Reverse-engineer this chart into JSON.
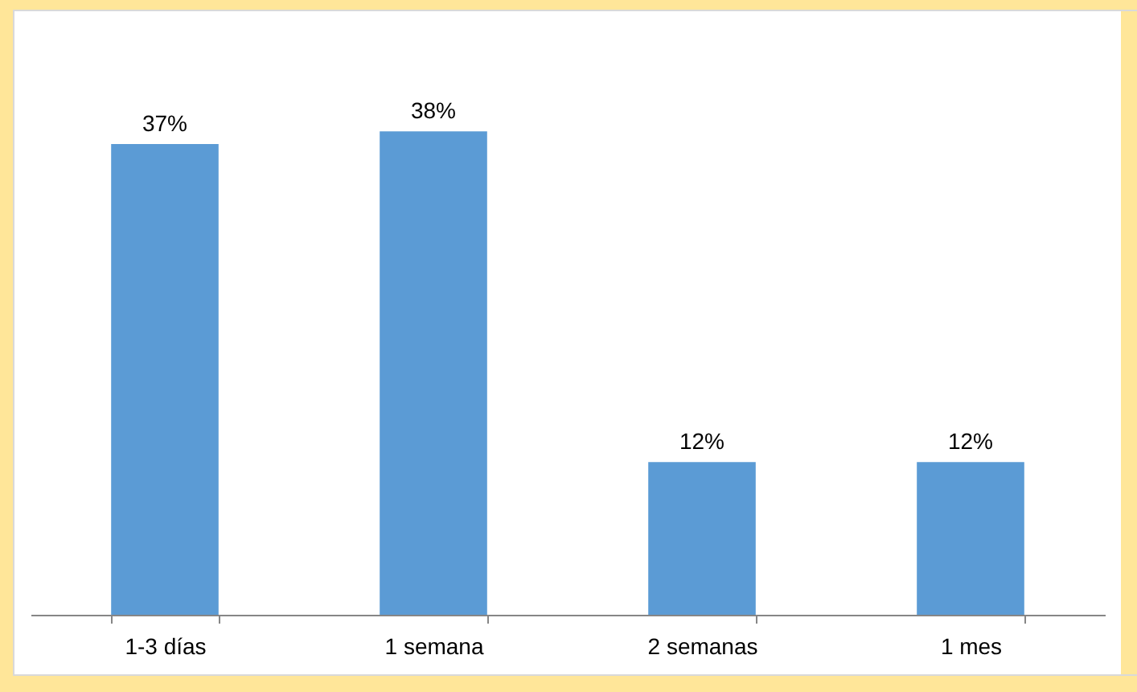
{
  "chart_data": {
    "type": "bar",
    "categories": [
      "1-3 días",
      "1 semana",
      "2 semanas",
      "1 mes"
    ],
    "values": [
      37,
      38,
      12,
      12
    ],
    "color": "#5b9bd5",
    "value_labels": [
      "37%",
      "38%",
      "12%",
      "12%"
    ],
    "tick_labels": "x"
  }
}
